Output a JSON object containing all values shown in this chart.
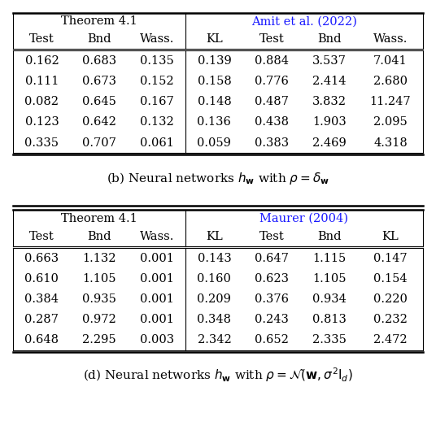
{
  "table_b": {
    "header1": [
      "Theorem 4.1",
      "Amit et al. (2022)"
    ],
    "header1_spans": [
      4,
      3
    ],
    "header2": [
      "Test",
      "Bnd",
      "Wass.",
      "KL",
      "Test",
      "Bnd",
      "Wass."
    ],
    "rows": [
      [
        "0.162",
        "0.683",
        "0.135",
        "0.139",
        "0.884",
        "3.537",
        "7.041"
      ],
      [
        "0.111",
        "0.673",
        "0.152",
        "0.158",
        "0.776",
        "2.414",
        "2.680"
      ],
      [
        "0.082",
        "0.645",
        "0.167",
        "0.148",
        "0.487",
        "3.832",
        "11.247"
      ],
      [
        "0.123",
        "0.642",
        "0.132",
        "0.136",
        "0.438",
        "1.903",
        "2.095"
      ],
      [
        "0.335",
        "0.707",
        "0.061",
        "0.059",
        "0.383",
        "2.469",
        "4.318"
      ]
    ],
    "caption": "(b) Neural networks $h_{\\mathbf{w}}$ with $\\rho = \\delta_{\\mathbf{w}}$",
    "divider_after_col": 3
  },
  "table_d": {
    "header1": [
      "Theorem 4.1",
      "Maurer (2004)"
    ],
    "header1_spans": [
      4,
      3
    ],
    "header2": [
      "Test",
      "Bnd",
      "Wass.",
      "KL",
      "Test",
      "Bnd",
      "KL"
    ],
    "rows": [
      [
        "0.663",
        "1.132",
        "0.001",
        "0.143",
        "0.647",
        "1.115",
        "0.147"
      ],
      [
        "0.610",
        "1.105",
        "0.001",
        "0.160",
        "0.623",
        "1.105",
        "0.154"
      ],
      [
        "0.384",
        "0.935",
        "0.001",
        "0.209",
        "0.376",
        "0.934",
        "0.220"
      ],
      [
        "0.287",
        "0.972",
        "0.001",
        "0.348",
        "0.243",
        "0.813",
        "0.232"
      ],
      [
        "0.648",
        "2.295",
        "0.003",
        "2.342",
        "0.652",
        "2.335",
        "2.472"
      ]
    ],
    "caption": "(d) Neural networks $h_{\\mathbf{w}}$ with $\\rho = \\mathcal{N}(\\mathbf{w}, \\sigma^2 \\mathrm{I}_d)$",
    "divider_after_col": 3
  },
  "black_color": "#000000",
  "blue_color": "#0000CC",
  "header1_black": "Theorem 4.1",
  "header1_blue_b": "Amit et al. (2022)",
  "header1_blue_d": "Maurer (2004)",
  "fontsize": 11
}
